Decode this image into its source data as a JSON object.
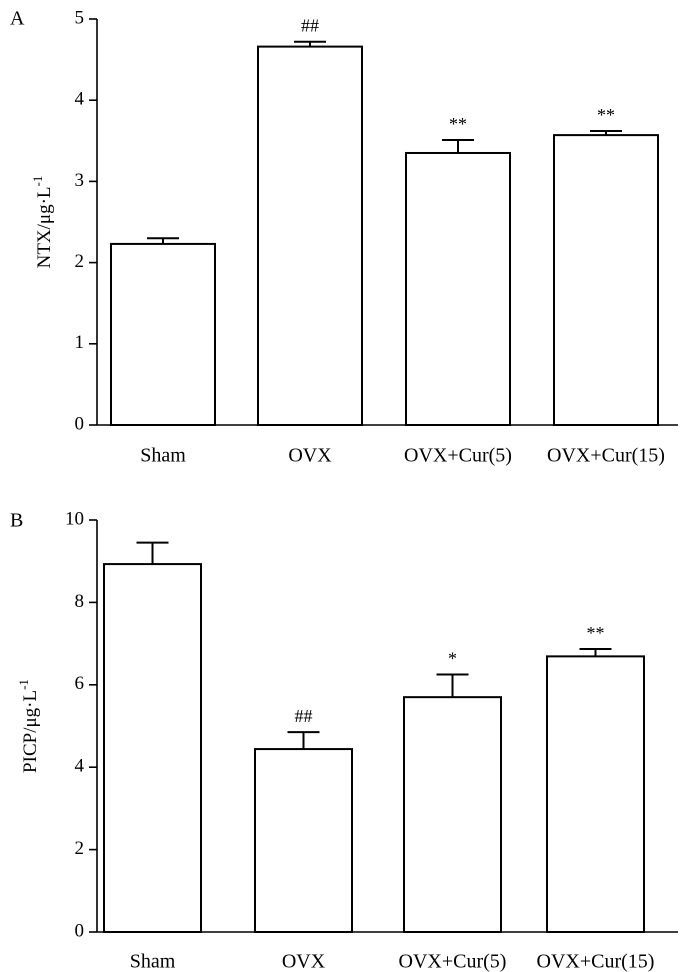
{
  "chart_data": [
    {
      "type": "bar",
      "panel_label": "A",
      "categories": [
        "Sham",
        "OVX",
        "OVX+Cur(5)",
        "OVX+Cur(15)"
      ],
      "values": [
        2.23,
        4.66,
        3.35,
        3.57
      ],
      "errors": [
        0.07,
        0.06,
        0.16,
        0.05
      ],
      "significance": [
        "",
        "##",
        "**",
        "**"
      ],
      "ylabel": "NTX/μg·L",
      "ylabel_sup": "-1",
      "ylim": [
        0,
        5
      ],
      "yticks": [
        0,
        1,
        2,
        3,
        4,
        5
      ],
      "ytick_labels": [
        "0",
        "1",
        "2",
        "3",
        "4",
        "5"
      ],
      "grid": false,
      "bar_color": "#ffffff",
      "edge_color": "#000000"
    },
    {
      "type": "bar",
      "panel_label": "B",
      "categories": [
        "Sham",
        "OVX",
        "OVX+Cur(5)",
        "OVX+Cur(15)"
      ],
      "values": [
        8.93,
        4.44,
        5.7,
        6.69
      ],
      "errors": [
        0.52,
        0.41,
        0.55,
        0.18
      ],
      "significance": [
        "",
        "##",
        "*",
        "**"
      ],
      "ylabel": "PICP/μg·L",
      "ylabel_sup": "-1",
      "ylim": [
        0,
        10
      ],
      "yticks": [
        0,
        2,
        4,
        6,
        8,
        10
      ],
      "ytick_labels": [
        "0",
        "2",
        "4",
        "6",
        "8",
        "10"
      ],
      "grid": false,
      "bar_color": "#ffffff",
      "edge_color": "#000000"
    }
  ]
}
